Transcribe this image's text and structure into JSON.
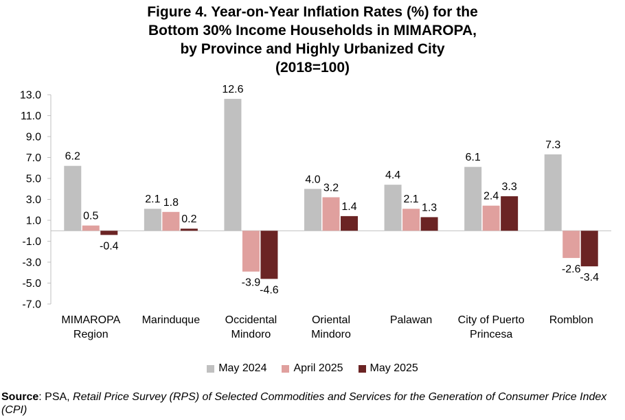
{
  "title_lines": [
    "Figure 4. Year-on-Year Inflation Rates (%) for the",
    "Bottom 30% Income Households in MIMAROPA,",
    "by Province and Highly Urbanized City",
    "(2018=100)"
  ],
  "colors": {
    "May 2024": "#c0c0c0",
    "April 2025": "#e0a09e",
    "May 2025": "#6b2424"
  },
  "chart_data": {
    "type": "bar",
    "title": "Figure 4. Year-on-Year Inflation Rates (%) for the Bottom 30% Income Households in MIMAROPA, by Province and Highly Urbanized City (2018=100)",
    "categories": [
      [
        "MIMAROPA",
        "Region"
      ],
      [
        "Marinduque"
      ],
      [
        "Occidental",
        "Mindoro"
      ],
      [
        "Oriental",
        "Mindoro"
      ],
      [
        "Palawan"
      ],
      [
        "City of Puerto",
        "Princesa"
      ],
      [
        "Romblon"
      ]
    ],
    "series": [
      {
        "name": "May 2024",
        "values": [
          6.2,
          2.1,
          12.6,
          4.0,
          4.4,
          6.1,
          7.3
        ]
      },
      {
        "name": "April 2025",
        "values": [
          0.5,
          1.8,
          -3.9,
          3.2,
          2.1,
          2.4,
          -2.6
        ]
      },
      {
        "name": "May 2025",
        "values": [
          -0.4,
          0.2,
          -4.6,
          1.4,
          1.3,
          3.3,
          -3.4
        ]
      }
    ],
    "ylim": [
      -7.0,
      13.0
    ],
    "yticks": [
      "13.0",
      "11.0",
      "9.0",
      "7.0",
      "5.0",
      "3.0",
      "1.0",
      "-1.0",
      "-3.0",
      "-5.0",
      "-7.0"
    ],
    "ytick_values": [
      13,
      11,
      9,
      7,
      5,
      3,
      1,
      -1,
      -3,
      -5,
      -7
    ],
    "xlabel": "",
    "ylabel": "",
    "grid": false,
    "legend": "bottom"
  },
  "source": {
    "label": "Source",
    "prefix": ": PSA, ",
    "italic": "Retail Price Survey (RPS) of Selected Commodities and Services for the Generation of Consumer Price Index (CPI)"
  }
}
